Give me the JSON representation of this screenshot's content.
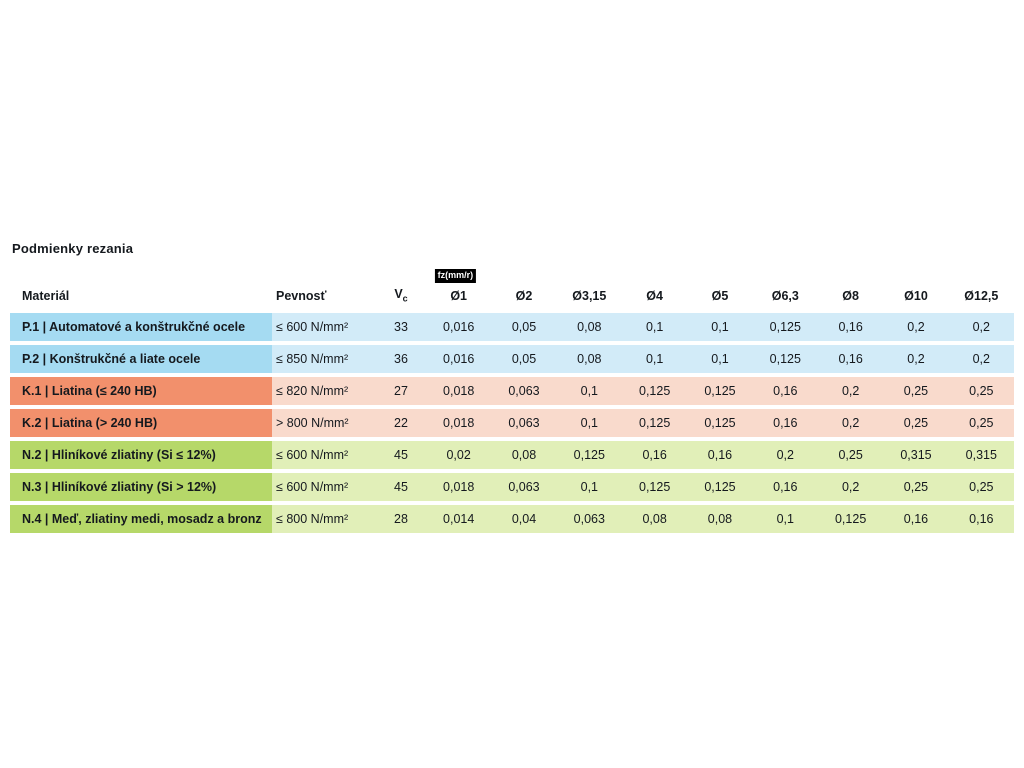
{
  "page": {
    "title": "Podmienky rezania"
  },
  "table": {
    "fz_label": "fz(mm/r)",
    "headers": {
      "material": "Materiál",
      "strength": "Pevnosť",
      "vc_main": "V",
      "vc_sub": "c",
      "diameters": [
        "Ø1",
        "Ø2",
        "Ø3,15",
        "Ø4",
        "Ø5",
        "Ø6,3",
        "Ø8",
        "Ø10",
        "Ø12,5"
      ]
    },
    "rows": [
      {
        "group": "P",
        "label": "P.1 | Automatové a konštrukčné ocele",
        "strength": "≤ 600 N/mm²",
        "vc": "33",
        "values": [
          "0,016",
          "0,05",
          "0,08",
          "0,1",
          "0,1",
          "0,125",
          "0,16",
          "0,2",
          "0,2"
        ]
      },
      {
        "group": "P",
        "label": "P.2 | Konštrukčné a liate ocele",
        "strength": "≤ 850 N/mm²",
        "vc": "36",
        "values": [
          "0,016",
          "0,05",
          "0,08",
          "0,1",
          "0,1",
          "0,125",
          "0,16",
          "0,2",
          "0,2"
        ]
      },
      {
        "group": "K",
        "label": "K.1 | Liatina (≤ 240 HB)",
        "strength": "≤ 820 N/mm²",
        "vc": "27",
        "values": [
          "0,018",
          "0,063",
          "0,1",
          "0,125",
          "0,125",
          "0,16",
          "0,2",
          "0,25",
          "0,25"
        ]
      },
      {
        "group": "K",
        "label": "K.2 | Liatina (> 240 HB)",
        "strength": "> 800 N/mm²",
        "vc": "22",
        "values": [
          "0,018",
          "0,063",
          "0,1",
          "0,125",
          "0,125",
          "0,16",
          "0,2",
          "0,25",
          "0,25"
        ]
      },
      {
        "group": "N",
        "label": "N.2 | Hliníkové zliatiny (Si ≤ 12%)",
        "strength": "≤ 600 N/mm²",
        "vc": "45",
        "values": [
          "0,02",
          "0,08",
          "0,125",
          "0,16",
          "0,16",
          "0,2",
          "0,25",
          "0,315",
          "0,315"
        ]
      },
      {
        "group": "N",
        "label": "N.3 | Hliníkové zliatiny (Si > 12%)",
        "strength": "≤ 600 N/mm²",
        "vc": "45",
        "values": [
          "0,018",
          "0,063",
          "0,1",
          "0,125",
          "0,125",
          "0,16",
          "0,2",
          "0,25",
          "0,25"
        ]
      },
      {
        "group": "N",
        "label": "N.4 | Meď, zliatiny medi, mosadz a bronz",
        "strength": "≤ 800 N/mm²",
        "vc": "28",
        "values": [
          "0,014",
          "0,04",
          "0,063",
          "0,08",
          "0,08",
          "0,1",
          "0,125",
          "0,16",
          "0,16"
        ]
      }
    ]
  },
  "colors": {
    "p_label_bg": "#a5dbf2",
    "p_row_bg": "#d2ebf8",
    "k_label_bg": "#f2906c",
    "k_row_bg": "#f9dacc",
    "n_label_bg": "#b6d869",
    "n_row_bg": "#e1efb8",
    "badge_bg": "#000000",
    "badge_text": "#ffffff",
    "text": "#15191e",
    "background": "#ffffff"
  }
}
